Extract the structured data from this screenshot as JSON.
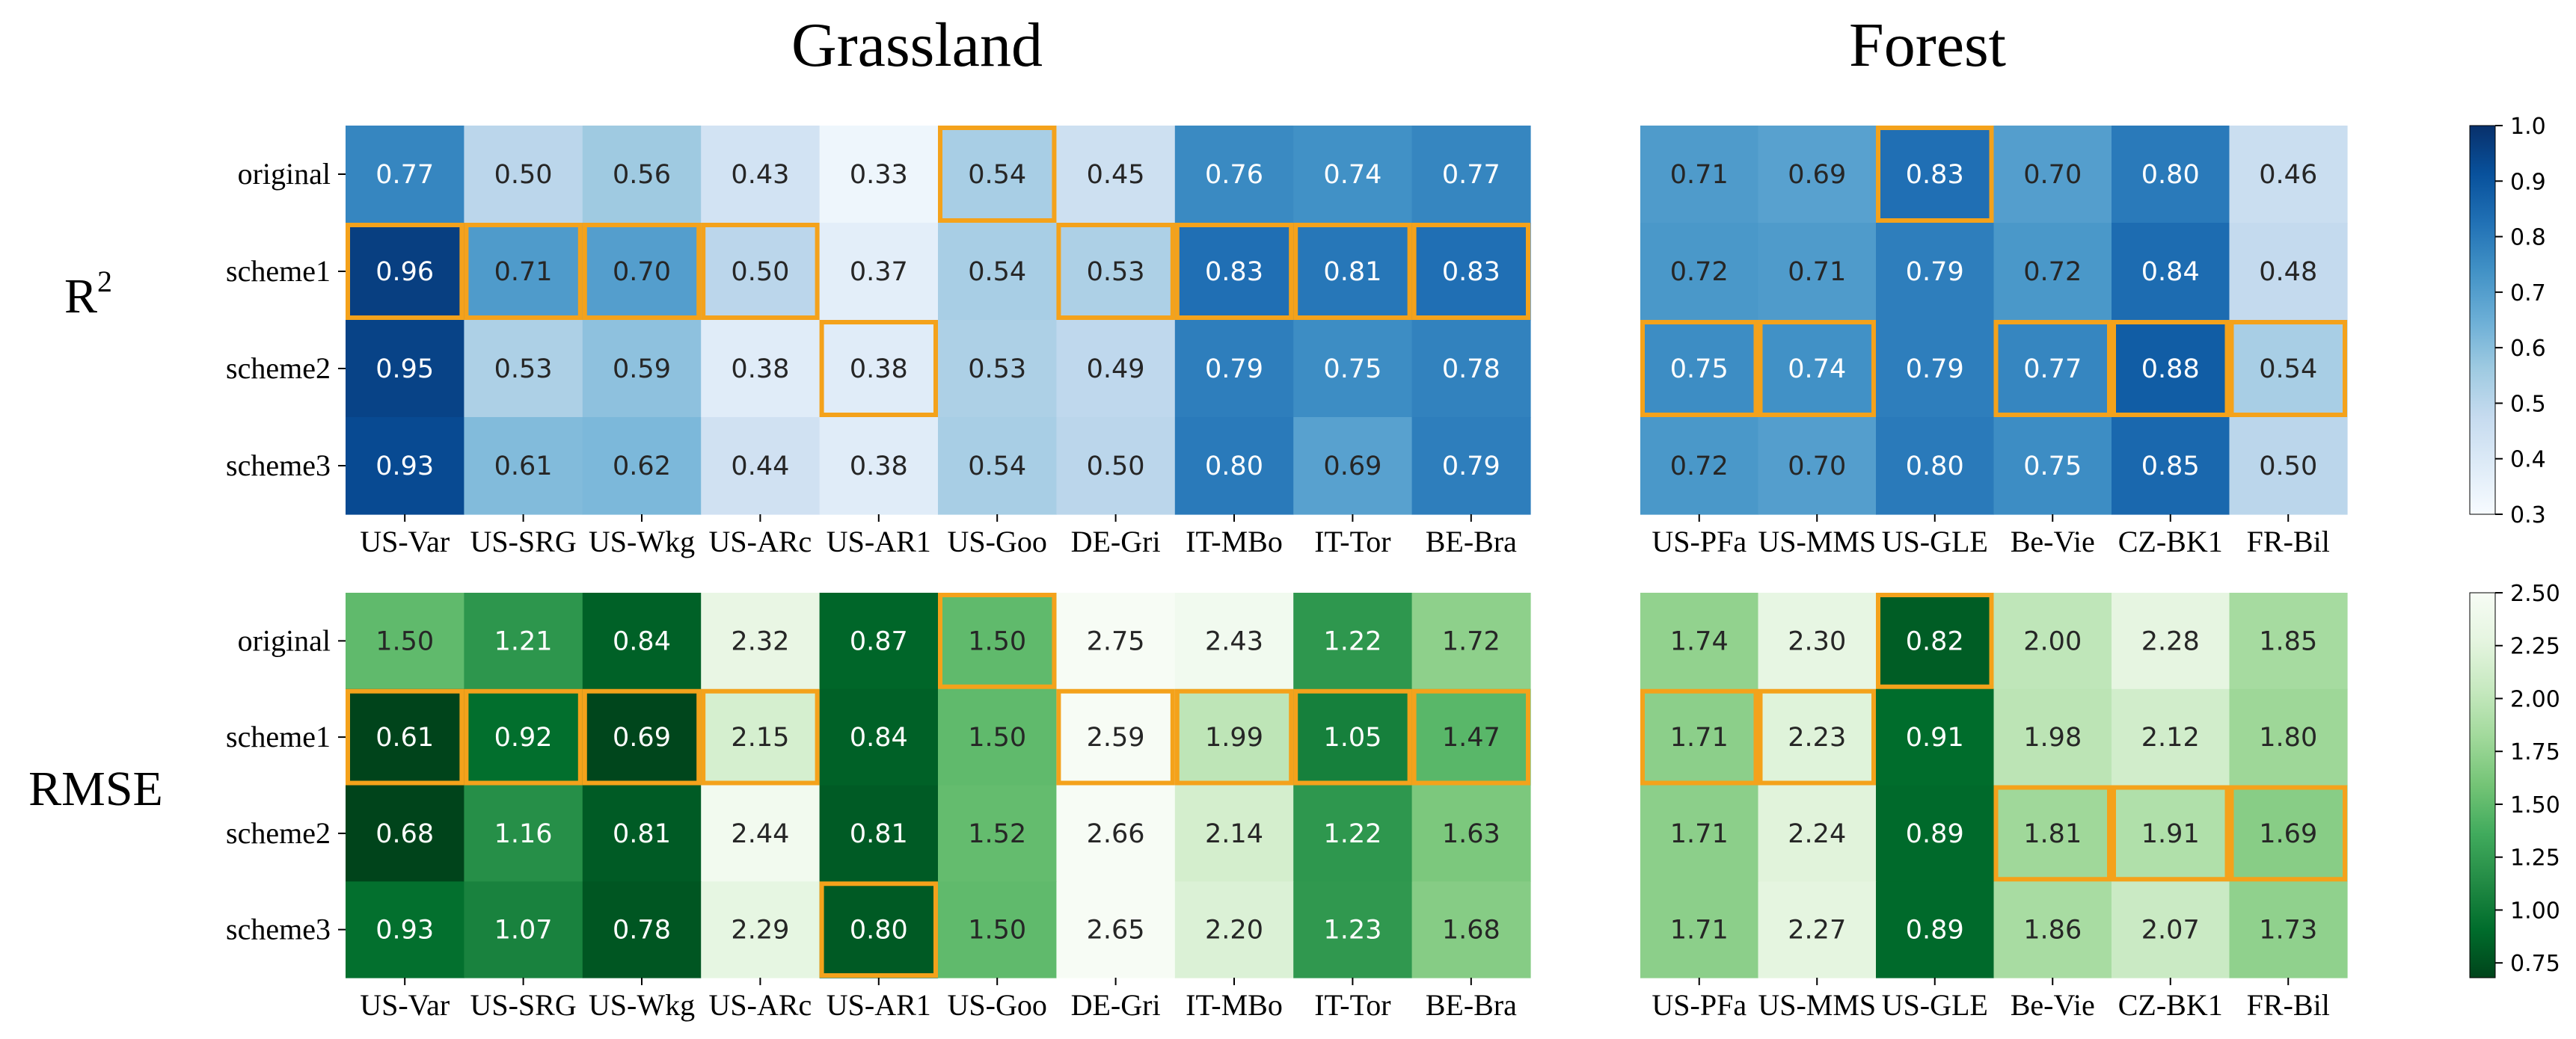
{
  "group_titles": {
    "grassland": "Grassland",
    "forest": "Forest"
  },
  "metric_labels": {
    "r2": "R",
    "r2_sup": "2",
    "rmse": "RMSE"
  },
  "highlight_color": "#F4A21B",
  "chart_data": [
    {
      "type": "heatmap",
      "id": "r2_grassland",
      "metric": "R2",
      "title": "Grassland",
      "colormap": "Blues",
      "vmin": 0.3,
      "vmax": 1.0,
      "rows": [
        "original",
        "scheme1",
        "scheme2",
        "scheme3"
      ],
      "cols": [
        "US-Var",
        "US-SRG",
        "US-Wkg",
        "US-ARc",
        "US-AR1",
        "US-Goo",
        "DE-Gri",
        "IT-MBo",
        "IT-Tor",
        "BE-Bra"
      ],
      "values": [
        [
          0.77,
          0.5,
          0.56,
          0.43,
          0.33,
          0.54,
          0.45,
          0.76,
          0.74,
          0.77
        ],
        [
          0.96,
          0.71,
          0.7,
          0.5,
          0.37,
          0.54,
          0.53,
          0.83,
          0.81,
          0.83
        ],
        [
          0.95,
          0.53,
          0.59,
          0.38,
          0.38,
          0.53,
          0.49,
          0.79,
          0.75,
          0.78
        ],
        [
          0.93,
          0.61,
          0.62,
          0.44,
          0.38,
          0.54,
          0.5,
          0.8,
          0.69,
          0.79
        ]
      ],
      "best_per_column": [
        1,
        1,
        1,
        1,
        2,
        0,
        1,
        1,
        1,
        1
      ]
    },
    {
      "type": "heatmap",
      "id": "r2_forest",
      "metric": "R2",
      "title": "Forest",
      "colormap": "Blues",
      "vmin": 0.3,
      "vmax": 1.0,
      "rows": [
        "original",
        "scheme1",
        "scheme2",
        "scheme3"
      ],
      "cols": [
        "US-PFa",
        "US-MMS",
        "US-GLE",
        "Be-Vie",
        "CZ-BK1",
        "FR-Bil"
      ],
      "values": [
        [
          0.71,
          0.69,
          0.83,
          0.7,
          0.8,
          0.46
        ],
        [
          0.72,
          0.71,
          0.79,
          0.72,
          0.84,
          0.48
        ],
        [
          0.75,
          0.74,
          0.79,
          0.77,
          0.88,
          0.54
        ],
        [
          0.72,
          0.7,
          0.8,
          0.75,
          0.85,
          0.5
        ]
      ],
      "best_per_column": [
        2,
        2,
        0,
        2,
        2,
        2
      ]
    },
    {
      "type": "heatmap",
      "id": "rmse_grassland",
      "metric": "RMSE",
      "colormap": "Greens_r",
      "vmin": 0.68,
      "vmax": 2.5,
      "rows": [
        "original",
        "scheme1",
        "scheme2",
        "scheme3"
      ],
      "cols": [
        "US-Var",
        "US-SRG",
        "US-Wkg",
        "US-ARc",
        "US-AR1",
        "US-Goo",
        "DE-Gri",
        "IT-MBo",
        "IT-Tor",
        "BE-Bra"
      ],
      "values": [
        [
          1.5,
          1.21,
          0.84,
          2.32,
          0.87,
          1.5,
          2.75,
          2.43,
          1.22,
          1.72
        ],
        [
          0.61,
          0.92,
          0.69,
          2.15,
          0.84,
          1.5,
          2.59,
          1.99,
          1.05,
          1.47
        ],
        [
          0.68,
          1.16,
          0.81,
          2.44,
          0.81,
          1.52,
          2.66,
          2.14,
          1.22,
          1.63
        ],
        [
          0.93,
          1.07,
          0.78,
          2.29,
          0.8,
          1.5,
          2.65,
          2.2,
          1.23,
          1.68
        ]
      ],
      "best_per_column": [
        1,
        1,
        1,
        1,
        3,
        0,
        1,
        1,
        1,
        1
      ]
    },
    {
      "type": "heatmap",
      "id": "rmse_forest",
      "metric": "RMSE",
      "colormap": "Greens_r",
      "vmin": 0.68,
      "vmax": 2.5,
      "rows": [
        "original",
        "scheme1",
        "scheme2",
        "scheme3"
      ],
      "cols": [
        "US-PFa",
        "US-MMS",
        "US-GLE",
        "Be-Vie",
        "CZ-BK1",
        "FR-Bil"
      ],
      "values": [
        [
          1.74,
          2.3,
          0.82,
          2.0,
          2.28,
          1.85
        ],
        [
          1.71,
          2.23,
          0.91,
          1.98,
          2.12,
          1.8
        ],
        [
          1.71,
          2.24,
          0.89,
          1.81,
          1.91,
          1.69
        ],
        [
          1.71,
          2.27,
          0.89,
          1.86,
          2.07,
          1.73
        ]
      ],
      "best_per_column": [
        1,
        1,
        0,
        2,
        2,
        2
      ]
    }
  ],
  "colorbars": {
    "r2": {
      "ticks": [
        "1.0",
        "0.9",
        "0.8",
        "0.7",
        "0.6",
        "0.5",
        "0.4",
        "0.3"
      ],
      "tick_values": [
        1.0,
        0.9,
        0.8,
        0.7,
        0.6,
        0.5,
        0.4,
        0.3
      ]
    },
    "rmse": {
      "ticks": [
        "2.50",
        "2.25",
        "2.00",
        "1.75",
        "1.50",
        "1.25",
        "1.00",
        "0.75"
      ],
      "tick_values": [
        2.5,
        2.25,
        2.0,
        1.75,
        1.5,
        1.25,
        1.0,
        0.75
      ]
    }
  }
}
